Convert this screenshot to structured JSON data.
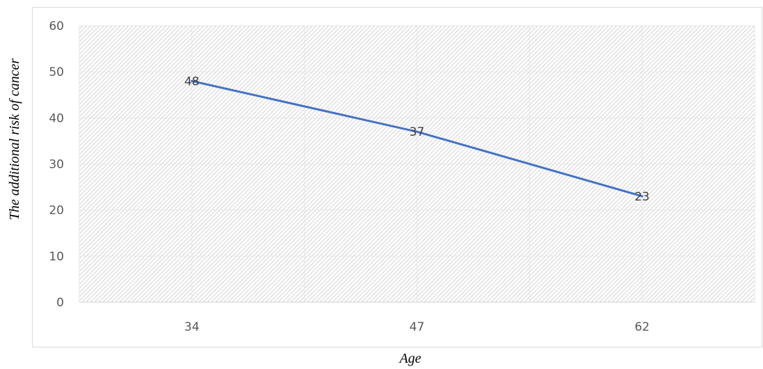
{
  "chart_data": {
    "type": "line",
    "title": "",
    "xlabel": "Age",
    "ylabel": "The additional risk of cancer",
    "categories": [
      "34",
      "47",
      "62"
    ],
    "series": [
      {
        "values": [
          48,
          37,
          23
        ]
      }
    ],
    "ylim": [
      0,
      60
    ],
    "y_ticks": [
      "0",
      "10",
      "20",
      "30",
      "40",
      "50",
      "60"
    ],
    "grid": true,
    "legend": "none",
    "line_color": "#4472C4",
    "data_labels": true
  }
}
